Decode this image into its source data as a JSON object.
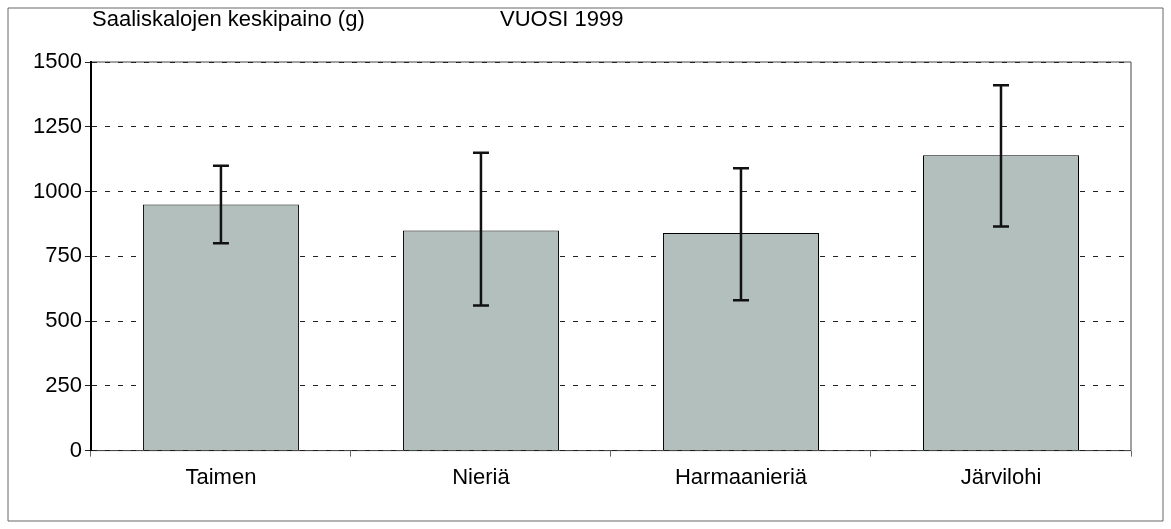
{
  "chart_data": {
    "type": "bar",
    "title": "VUOSI 1999",
    "ylabel": "Saaliskalojen keskipaino (g)",
    "categories": [
      "Taimen",
      "Nieriä",
      "Harmaanieriä",
      "Järvilohi"
    ],
    "values": [
      950,
      850,
      840,
      1140
    ],
    "errors": [
      [
        800,
        1100
      ],
      [
        560,
        1150
      ],
      [
        580,
        1090
      ],
      [
        865,
        1410
      ]
    ],
    "color": "#b3bfbc",
    "ylim": [
      0,
      1500
    ],
    "yticks": [
      0,
      250,
      500,
      750,
      1000,
      1250,
      1500
    ],
    "grid": "y",
    "line_style": "dashed"
  }
}
